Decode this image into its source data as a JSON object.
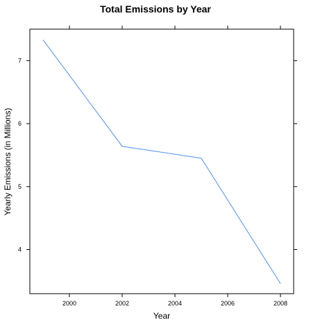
{
  "chart_data": {
    "type": "line",
    "title": "Total Emissions by Year",
    "xlabel": "Year",
    "ylabel": "Yearly Emissions (in Millions)",
    "x": [
      1999,
      2002,
      2005,
      2008
    ],
    "series": [
      {
        "values": [
          7.33,
          5.64,
          5.45,
          3.46
        ]
      }
    ],
    "xlim": [
      1998.5,
      2008.5
    ],
    "ylim": [
      3.3,
      7.5
    ],
    "xticks": [
      2000,
      2002,
      2004,
      2006,
      2008
    ],
    "xtick_labels": [
      "2000",
      "2002",
      "2004",
      "2006",
      "2008"
    ],
    "yticks": [
      4,
      5,
      6,
      7
    ],
    "ytick_labels": [
      "4",
      "5",
      "6",
      "7"
    ],
    "grid": false,
    "legend": "none",
    "line_color": "#4f8ff5"
  }
}
